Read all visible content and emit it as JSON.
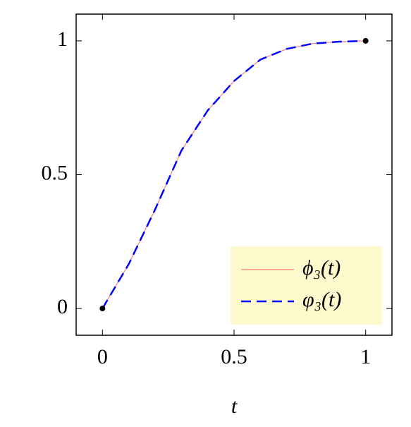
{
  "chart_data": {
    "type": "line",
    "xlabel": "t",
    "x": [
      0,
      0.1,
      0.2,
      0.3,
      0.4,
      0.5,
      0.6,
      0.7,
      0.8,
      0.9,
      1
    ],
    "series": [
      {
        "name": "ϕ₃(t)",
        "color": "#f08080",
        "dash": false,
        "values": [
          0,
          0.166,
          0.37,
          0.59,
          0.74,
          0.85,
          0.93,
          0.97,
          0.99,
          0.997,
          1
        ]
      },
      {
        "name": "φ₃(t)",
        "color": "#0000ff",
        "dash": true,
        "values": [
          0,
          0.166,
          0.37,
          0.59,
          0.74,
          0.85,
          0.93,
          0.97,
          0.99,
          0.997,
          1
        ]
      }
    ],
    "endpoints": {
      "x": [
        0,
        1
      ],
      "y": [
        0,
        1
      ],
      "color": "#000000"
    },
    "xlim": [
      -0.1,
      1.1
    ],
    "ylim": [
      -0.1,
      1.1
    ],
    "xticks": [
      0,
      0.5,
      1
    ],
    "yticks": [
      0,
      0.5,
      1
    ],
    "legend": "lower right",
    "legend_color": "#fffacd"
  }
}
